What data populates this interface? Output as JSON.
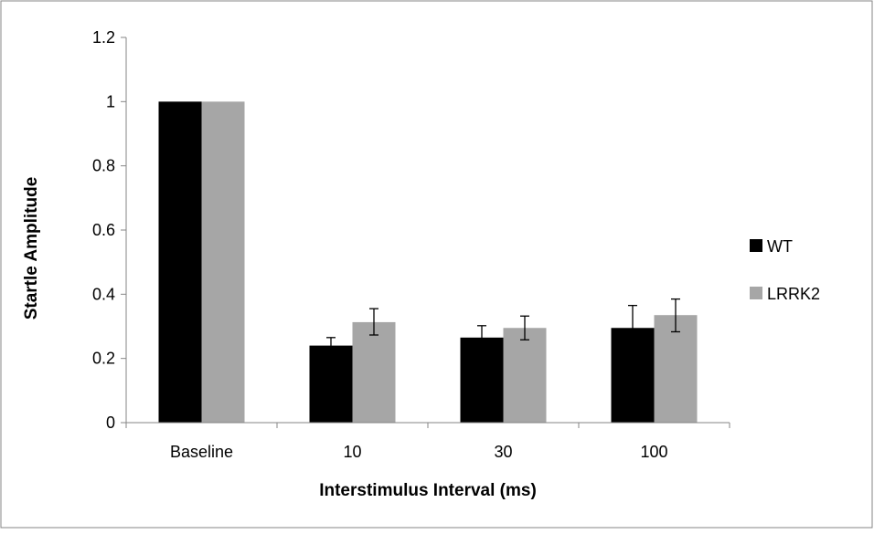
{
  "chart_data": {
    "type": "bar",
    "title": "",
    "xlabel": "Interstimulus Interval (ms)",
    "ylabel": "Startle Amplitude",
    "ylim": [
      0,
      1.2
    ],
    "yticks": [
      "0",
      "0.2",
      "0.4",
      "0.6",
      "0.8",
      "1",
      "1.2"
    ],
    "categories": [
      "Baseline",
      "10",
      "30",
      "100"
    ],
    "series": [
      {
        "name": "WT",
        "color": "#000000",
        "values": [
          1.0,
          0.24,
          0.265,
          0.295
        ],
        "error_low": [
          null,
          0.222,
          0.232,
          0.228
        ],
        "error_high": [
          null,
          0.265,
          0.302,
          0.365
        ]
      },
      {
        "name": "LRRK2",
        "color": "#a6a6a6",
        "values": [
          1.0,
          0.313,
          0.295,
          0.335
        ],
        "error_low": [
          null,
          0.273,
          0.258,
          0.283
        ],
        "error_high": [
          null,
          0.355,
          0.332,
          0.385
        ]
      }
    ],
    "grid": false,
    "legend": "right",
    "frame_color": "#868686"
  }
}
